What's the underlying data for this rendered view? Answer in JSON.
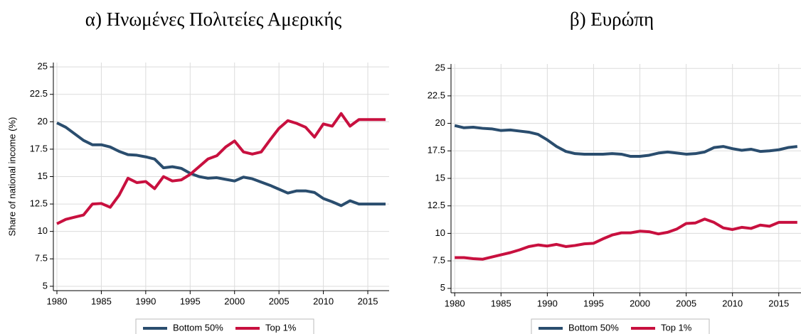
{
  "chart_data": [
    {
      "type": "line",
      "title": "α) Ηνωμένες Πολιτείες Αμερικής",
      "ylabel": "Share of national income (%)",
      "x": [
        1980,
        1981,
        1982,
        1983,
        1984,
        1985,
        1986,
        1987,
        1988,
        1989,
        1990,
        1991,
        1992,
        1993,
        1994,
        1995,
        1996,
        1997,
        1998,
        1999,
        2000,
        2001,
        2002,
        2003,
        2004,
        2005,
        2006,
        2007,
        2008,
        2009,
        2010,
        2011,
        2012,
        2013,
        2014,
        2015,
        2016,
        2017
      ],
      "series": [
        {
          "name": "Bottom 50%",
          "color": "#2a4d6e",
          "values": [
            19.9,
            19.5,
            18.9,
            18.3,
            17.9,
            17.9,
            17.7,
            17.3,
            17.0,
            16.95,
            16.8,
            16.6,
            15.8,
            15.9,
            15.75,
            15.3,
            15.0,
            14.85,
            14.9,
            14.75,
            14.6,
            14.95,
            14.8,
            14.5,
            14.2,
            13.85,
            13.5,
            13.7,
            13.7,
            13.55,
            13.0,
            12.7,
            12.35,
            12.8,
            12.5,
            12.5,
            12.5,
            12.5
          ]
        },
        {
          "name": "Top 1%",
          "color": "#c8103f",
          "values": [
            10.7,
            11.1,
            11.3,
            11.5,
            12.5,
            12.55,
            12.2,
            13.3,
            14.85,
            14.45,
            14.55,
            13.9,
            15.0,
            14.6,
            14.7,
            15.2,
            15.9,
            16.6,
            16.9,
            17.7,
            18.25,
            17.25,
            17.05,
            17.25,
            18.35,
            19.4,
            20.1,
            19.85,
            19.5,
            18.6,
            19.8,
            19.6,
            20.75,
            19.6,
            20.2,
            20.2,
            20.2,
            20.2
          ]
        }
      ],
      "xlim": [
        1979.6,
        2017.4
      ],
      "xticks": [
        1980,
        1985,
        1990,
        1995,
        2000,
        2005,
        2010,
        2015
      ],
      "ylim": [
        4.6,
        25.4
      ],
      "yticks": [
        5,
        7.5,
        10,
        12.5,
        15,
        17.5,
        20,
        22.5,
        25
      ],
      "grid": true,
      "legend": "bottom"
    },
    {
      "type": "line",
      "title": "β) Ευρώπη",
      "x": [
        1980,
        1981,
        1982,
        1983,
        1984,
        1985,
        1986,
        1987,
        1988,
        1989,
        1990,
        1991,
        1992,
        1993,
        1994,
        1995,
        1996,
        1997,
        1998,
        1999,
        2000,
        2001,
        2002,
        2003,
        2004,
        2005,
        2006,
        2007,
        2008,
        2009,
        2010,
        2011,
        2012,
        2013,
        2014,
        2015,
        2016,
        2017
      ],
      "series": [
        {
          "name": "Bottom 50%",
          "color": "#2a4d6e",
          "values": [
            19.8,
            19.6,
            19.65,
            19.55,
            19.5,
            19.35,
            19.4,
            19.3,
            19.2,
            19.0,
            18.5,
            17.9,
            17.45,
            17.25,
            17.2,
            17.2,
            17.2,
            17.25,
            17.2,
            17.0,
            17.0,
            17.1,
            17.3,
            17.4,
            17.3,
            17.2,
            17.25,
            17.4,
            17.8,
            17.9,
            17.7,
            17.55,
            17.65,
            17.45,
            17.5,
            17.6,
            17.8,
            17.9
          ]
        },
        {
          "name": "Top 1%",
          "color": "#c8103f",
          "values": [
            7.8,
            7.8,
            7.7,
            7.65,
            7.85,
            8.05,
            8.25,
            8.5,
            8.8,
            8.95,
            8.85,
            9.0,
            8.8,
            8.9,
            9.05,
            9.1,
            9.5,
            9.85,
            10.05,
            10.05,
            10.2,
            10.15,
            9.95,
            10.1,
            10.4,
            10.9,
            10.95,
            11.3,
            11.0,
            10.5,
            10.35,
            10.55,
            10.45,
            10.75,
            10.65,
            11.0,
            11.0,
            11.0
          ]
        }
      ],
      "xlim": [
        1979.6,
        2017.4
      ],
      "xticks": [
        1980,
        1985,
        1990,
        1995,
        2000,
        2005,
        2010,
        2015
      ],
      "ylim": [
        4.6,
        25.4
      ],
      "yticks": [
        5,
        7.5,
        10,
        12.5,
        15,
        17.5,
        20,
        22.5,
        25
      ],
      "grid": true,
      "legend": "bottom"
    }
  ]
}
